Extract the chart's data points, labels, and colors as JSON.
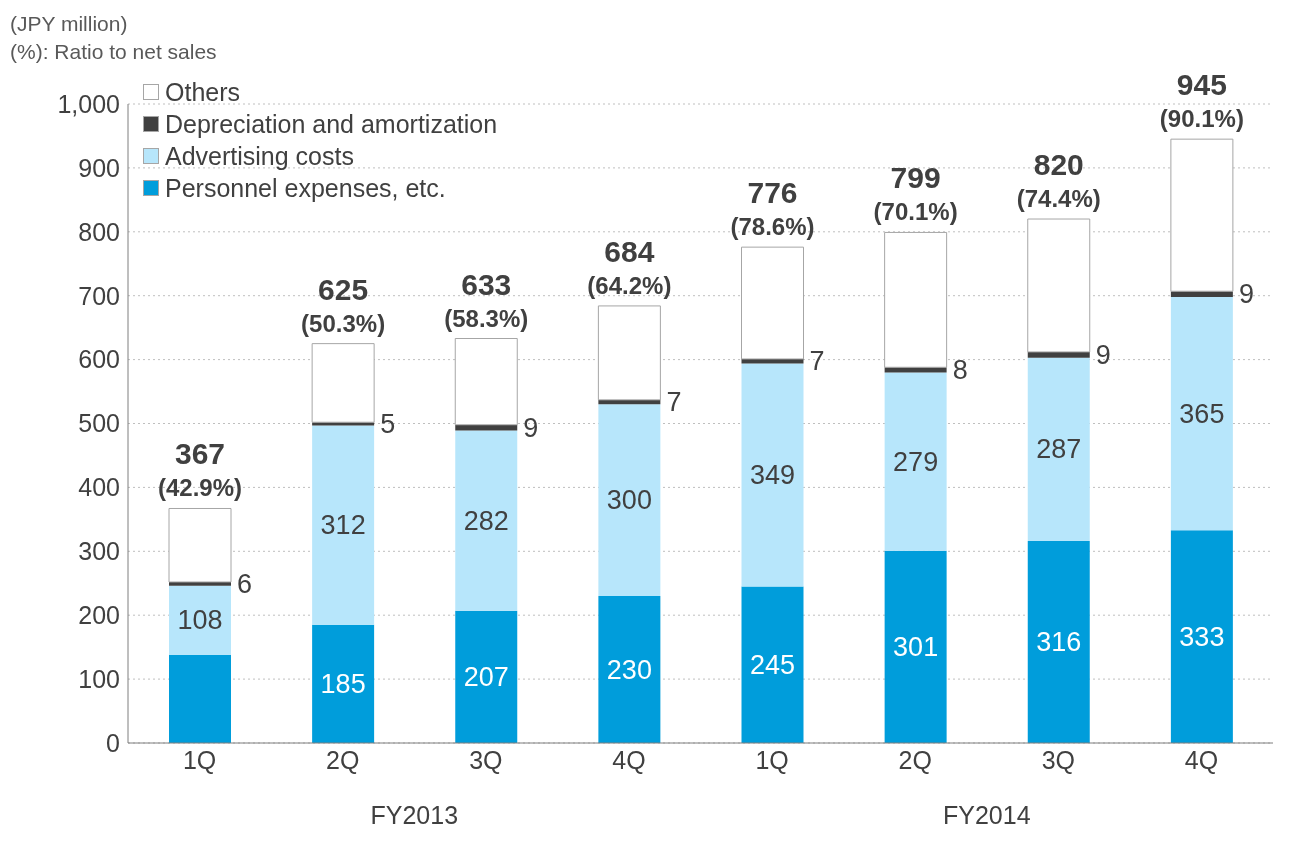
{
  "chart_data": {
    "type": "bar",
    "stacked": true,
    "title": "(JPY million)",
    "subtitle": "(%): Ratio to net sales",
    "categories": [
      "1Q",
      "2Q",
      "3Q",
      "4Q",
      "1Q",
      "2Q",
      "3Q",
      "4Q"
    ],
    "series": [
      {
        "name": "Personnel expenses, etc.",
        "color": "#009ddb",
        "values": [
          138,
          185,
          207,
          230,
          245,
          301,
          316,
          333
        ],
        "value_labels": [
          null,
          "185",
          "207",
          "230",
          "245",
          "301",
          "316",
          "333"
        ]
      },
      {
        "name": "Advertising costs",
        "color": "#b7e6fb",
        "values": [
          108,
          312,
          282,
          300,
          349,
          279,
          287,
          365
        ],
        "value_labels": [
          "108",
          "312",
          "282",
          "300",
          "349",
          "279",
          "287",
          "365"
        ]
      },
      {
        "name": "Depreciation and amortization",
        "color": "#404040",
        "values": [
          6,
          5,
          9,
          7,
          7,
          8,
          9,
          9
        ],
        "value_labels": [
          "6",
          "5",
          "9",
          "7",
          "7",
          "8",
          "9",
          "9"
        ]
      },
      {
        "name": "Others",
        "color": "#ffffff",
        "values": [
          115,
          123,
          135,
          147,
          175,
          211,
          208,
          238
        ]
      }
    ],
    "totals": [
      "367\n(42.9%)",
      "625\n(50.3%)",
      "633\n(58.3%)",
      "684\n(64.2%)",
      "776\n(78.6%)",
      "799\n(70.1%)",
      "820\n(74.4%)",
      "945\n(90.1%)"
    ],
    "annotations": [
      "FY2013",
      "FY2014"
    ],
    "ylim": [
      0,
      1000
    ],
    "yticks": [
      0,
      {
        "value": 100,
        "label": "100"
      },
      200,
      300,
      400,
      500,
      600,
      700,
      800,
      900,
      {
        "value": 1000,
        "label": "1,000"
      }
    ],
    "grid": "y",
    "legend": "top left"
  }
}
